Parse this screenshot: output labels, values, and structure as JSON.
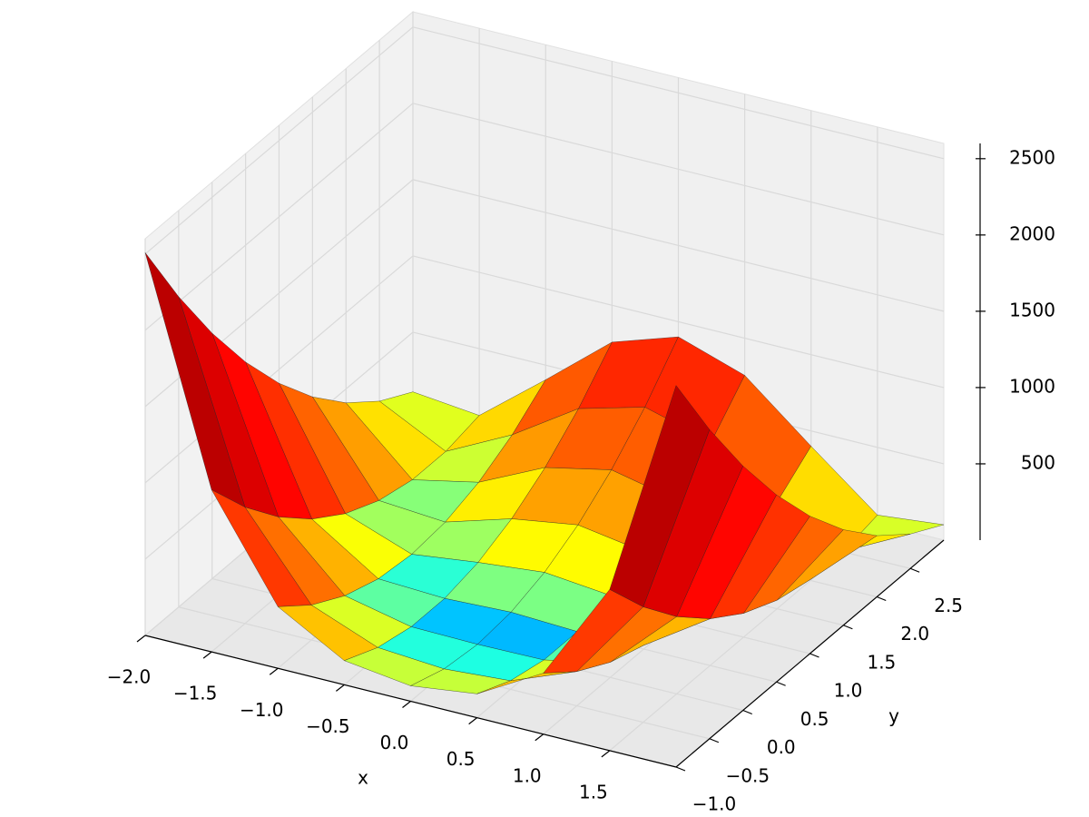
{
  "chart_data": {
    "type": "surface",
    "xlabel": "x",
    "ylabel": "y",
    "colormap": "jet",
    "color_norm": "log",
    "grid": true,
    "x": [
      -2,
      -1.5,
      -1,
      -0.5,
      0,
      0.5,
      1,
      1.5,
      2
    ],
    "y": [
      -1,
      -0.5,
      0,
      0.5,
      1,
      1.5,
      2,
      2.5,
      3
    ],
    "z": [
      [
        2509,
        1062.5,
        404,
        158.5,
        101,
        156.5,
        400,
        1056.5,
        2501
      ],
      [
        2034,
        762.5,
        229,
        58.5,
        26,
        56.5,
        225,
        756.5,
        2026
      ],
      [
        1609,
        512.5,
        104,
        8.5,
        1,
        6.5,
        100,
        506.5,
        1601
      ],
      [
        1234,
        312.5,
        29,
        8.5,
        26,
        6.5,
        25,
        306.5,
        1226
      ],
      [
        909,
        162.5,
        4,
        58.5,
        101,
        56.5,
        0,
        156.5,
        901
      ],
      [
        634,
        62.5,
        29,
        158.5,
        226,
        156.5,
        25,
        56.5,
        626
      ],
      [
        409,
        12.5,
        104,
        308.5,
        401,
        306.5,
        100,
        6.5,
        401
      ],
      [
        234,
        12.5,
        229,
        508.5,
        626,
        506.5,
        225,
        6.5,
        226
      ],
      [
        109,
        62.5,
        404,
        758.5,
        901,
        756.5,
        400,
        56.5,
        101
      ]
    ],
    "xlim": [
      -2,
      2
    ],
    "ylim": [
      -1,
      3
    ],
    "zlim": [
      0,
      2600
    ],
    "xticks": [
      {
        "value": -2,
        "label": "−2.0"
      },
      {
        "value": -1.5,
        "label": "−1.5"
      },
      {
        "value": -1,
        "label": "−1.0"
      },
      {
        "value": -0.5,
        "label": "−0.5"
      },
      {
        "value": 0,
        "label": "0.0"
      },
      0.5,
      {
        "value": 1,
        "label": "1.0"
      },
      1.5
    ],
    "yticks": [
      {
        "value": -1,
        "label": "−1.0"
      },
      {
        "value": -0.5,
        "label": "−0.5"
      },
      {
        "value": 0,
        "label": "0.0"
      },
      0.5,
      {
        "value": 1,
        "label": "1.0"
      },
      1.5,
      {
        "value": 2,
        "label": "2.0"
      },
      2.5
    ],
    "zticks": [
      500,
      1000,
      1500,
      2000,
      2500
    ]
  }
}
